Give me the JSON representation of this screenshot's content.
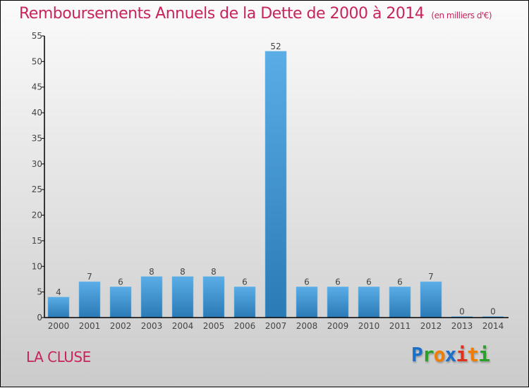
{
  "chart_data": {
    "type": "bar",
    "title": "Remboursements Annuels de la Dette de 2000 à 2014",
    "subtitle": "(en milliers d'€)",
    "categories": [
      "2000",
      "2001",
      "2002",
      "2003",
      "2004",
      "2005",
      "2006",
      "2007",
      "2008",
      "2009",
      "2010",
      "2011",
      "2012",
      "2013",
      "2014"
    ],
    "values": [
      4,
      7,
      6,
      8,
      8,
      8,
      6,
      52,
      6,
      6,
      6,
      6,
      7,
      0,
      0
    ],
    "ylim": [
      0,
      55
    ],
    "yticks": [
      0,
      5,
      10,
      15,
      20,
      25,
      30,
      35,
      40,
      45,
      50,
      55
    ],
    "xlabel": "",
    "ylabel": "",
    "bar_color": "#4ea2dd",
    "grid": false
  },
  "footer": {
    "town": "LA CLUSE",
    "brand": [
      "P",
      "r",
      "o",
      "x",
      "i",
      "t",
      "i"
    ]
  },
  "colors": {
    "title": "#c8245a"
  }
}
